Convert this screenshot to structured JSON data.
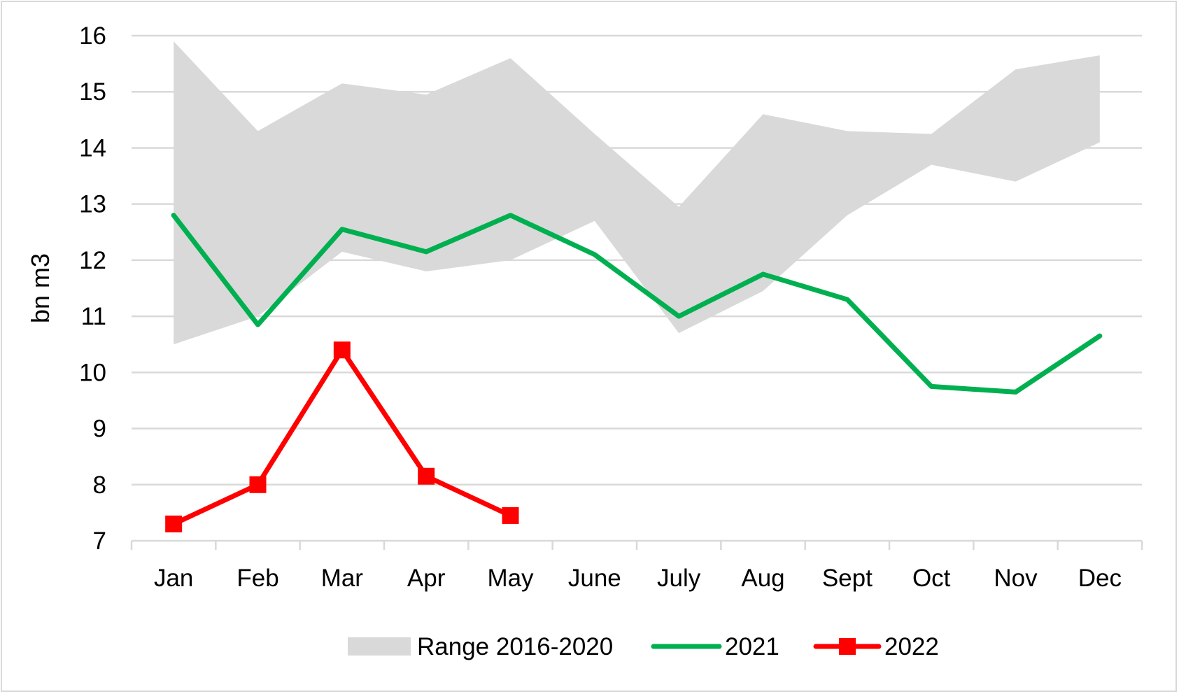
{
  "chart_data": {
    "type": "line",
    "title": "",
    "xlabel": "",
    "ylabel": "bn m3",
    "ylim": [
      7,
      16
    ],
    "yticks": [
      7,
      8,
      9,
      10,
      11,
      12,
      13,
      14,
      15,
      16
    ],
    "grid": true,
    "legend_position": "bottom",
    "categories": [
      "Jan",
      "Feb",
      "Mar",
      "Apr",
      "May",
      "June",
      "July",
      "Aug",
      "Sept",
      "Oct",
      "Nov",
      "Dec"
    ],
    "range": {
      "name": "Range 2016-2020",
      "color": "#d9d9d9",
      "low": [
        10.5,
        11.0,
        12.15,
        11.8,
        12.0,
        12.7,
        10.7,
        11.45,
        12.8,
        13.7,
        13.4,
        14.1
      ],
      "high": [
        15.9,
        14.3,
        15.15,
        14.95,
        15.6,
        14.25,
        12.95,
        14.6,
        14.3,
        14.25,
        15.4,
        15.65
      ]
    },
    "series": [
      {
        "name": "2021",
        "color": "#00b050",
        "marker": "none",
        "values": [
          12.8,
          10.85,
          12.55,
          12.15,
          12.8,
          12.1,
          11.0,
          11.75,
          11.3,
          9.75,
          9.65,
          10.65
        ]
      },
      {
        "name": "2022",
        "color": "#ff0000",
        "marker": "square",
        "values": [
          7.3,
          8.0,
          10.4,
          8.15,
          7.45,
          null,
          null,
          null,
          null,
          null,
          null,
          null
        ]
      }
    ]
  }
}
